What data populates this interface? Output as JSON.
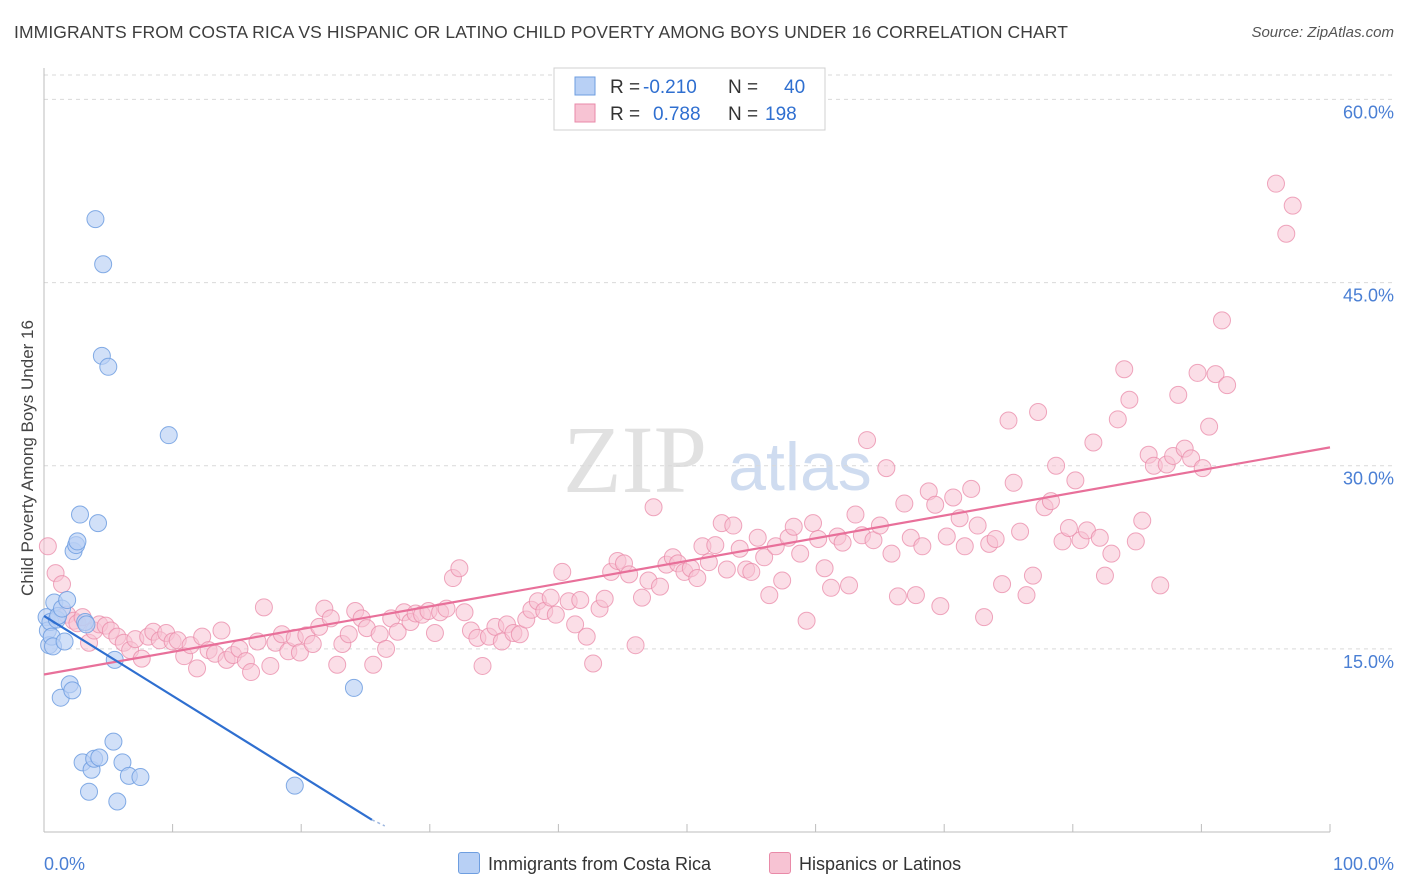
{
  "title": "IMMIGRANTS FROM COSTA RICA VS HISPANIC OR LATINO CHILD POVERTY AMONG BOYS UNDER 16 CORRELATION CHART",
  "source": "Source: ZipAtlas.com",
  "watermark": {
    "zip": "ZIP",
    "atlas": "atlas"
  },
  "colors": {
    "blue_fill": "#b8d0f5",
    "blue_stroke": "#6e9ee0",
    "blue_line": "#2f6fd0",
    "pink_fill": "#f7c3d3",
    "pink_stroke": "#e98aa8",
    "pink_line": "#e8709a",
    "grid": "#d9d9d9",
    "tick_label": "#4a7fd4"
  },
  "legend": {
    "rows": [
      {
        "r_label": "R =",
        "r_value": "-0.210",
        "n_label": "N =",
        "n_value": "40"
      },
      {
        "r_label": "R =",
        "r_value": "0.788",
        "n_label": "N =",
        "n_value": "198"
      }
    ]
  },
  "chart_data": {
    "type": "scatter",
    "title": "IMMIGRANTS FROM COSTA RICA VS HISPANIC OR LATINO CHILD POVERTY AMONG BOYS UNDER 16 CORRELATION CHART",
    "xlabel": "",
    "ylabel": "Child Poverty Among Boys Under 16",
    "xlim": [
      0,
      100
    ],
    "ylim": [
      0,
      62
    ],
    "x_tick_labels": [
      "0.0%",
      "100.0%"
    ],
    "y_ticks": [
      15,
      30,
      45,
      60
    ],
    "y_tick_labels": [
      "15.0%",
      "30.0%",
      "45.0%",
      "60.0%"
    ],
    "grid": true,
    "legend_position": "top-center",
    "series": [
      {
        "name": "Immigrants from Costa Rica",
        "color": "#b8d0f5",
        "trend": {
          "x": [
            0,
            25.5
          ],
          "y": [
            17.7,
            1.0
          ],
          "dashed_to": [
            26.5,
            0.5
          ]
        },
        "points": [
          [
            0.2,
            17.6
          ],
          [
            0.3,
            16.5
          ],
          [
            0.4,
            15.3
          ],
          [
            0.5,
            17.2
          ],
          [
            0.6,
            16.0
          ],
          [
            0.7,
            15.2
          ],
          [
            0.8,
            18.8
          ],
          [
            1.0,
            17.4
          ],
          [
            1.1,
            17.7
          ],
          [
            1.3,
            11.0
          ],
          [
            1.4,
            18.3
          ],
          [
            1.6,
            15.6
          ],
          [
            1.8,
            19.0
          ],
          [
            2.0,
            12.1
          ],
          [
            2.2,
            11.6
          ],
          [
            2.3,
            23.0
          ],
          [
            2.5,
            23.5
          ],
          [
            2.6,
            23.8
          ],
          [
            2.8,
            26.0
          ],
          [
            3.0,
            5.7
          ],
          [
            3.2,
            17.2
          ],
          [
            3.3,
            17.0
          ],
          [
            3.5,
            3.3
          ],
          [
            3.7,
            5.1
          ],
          [
            3.9,
            6.0
          ],
          [
            4.0,
            50.2
          ],
          [
            4.2,
            25.3
          ],
          [
            4.3,
            6.1
          ],
          [
            4.5,
            39.0
          ],
          [
            4.6,
            46.5
          ],
          [
            5.0,
            38.1
          ],
          [
            5.4,
            7.4
          ],
          [
            5.5,
            14.1
          ],
          [
            5.7,
            2.5
          ],
          [
            6.1,
            5.7
          ],
          [
            6.6,
            4.6
          ],
          [
            7.5,
            4.5
          ],
          [
            9.7,
            32.5
          ],
          [
            19.5,
            3.8
          ],
          [
            24.1,
            11.8
          ]
        ]
      },
      {
        "name": "Hispanics or Latinos",
        "color": "#f7c3d3",
        "trend": {
          "x": [
            0,
            100
          ],
          "y": [
            12.9,
            31.5
          ]
        },
        "points": [
          [
            0.3,
            23.4
          ],
          [
            0.9,
            21.2
          ],
          [
            1.4,
            20.3
          ],
          [
            1.8,
            17.8
          ],
          [
            2.3,
            17.3
          ],
          [
            2.6,
            17.1
          ],
          [
            3.0,
            17.6
          ],
          [
            3.5,
            15.5
          ],
          [
            3.9,
            16.5
          ],
          [
            4.3,
            17.0
          ],
          [
            4.8,
            16.9
          ],
          [
            5.2,
            16.5
          ],
          [
            5.7,
            16.0
          ],
          [
            6.2,
            15.5
          ],
          [
            6.7,
            14.9
          ],
          [
            7.1,
            15.8
          ],
          [
            7.6,
            14.2
          ],
          [
            8.1,
            16.0
          ],
          [
            8.5,
            16.4
          ],
          [
            9.0,
            15.7
          ],
          [
            9.5,
            16.3
          ],
          [
            10.0,
            15.6
          ],
          [
            10.4,
            15.7
          ],
          [
            10.9,
            14.4
          ],
          [
            11.4,
            15.3
          ],
          [
            11.9,
            13.4
          ],
          [
            12.3,
            16.0
          ],
          [
            12.8,
            14.9
          ],
          [
            13.3,
            14.6
          ],
          [
            13.8,
            16.5
          ],
          [
            14.2,
            14.1
          ],
          [
            14.7,
            14.5
          ],
          [
            15.2,
            15.0
          ],
          [
            15.7,
            14.0
          ],
          [
            16.1,
            13.1
          ],
          [
            16.6,
            15.6
          ],
          [
            17.1,
            18.4
          ],
          [
            17.6,
            13.6
          ],
          [
            18.0,
            15.5
          ],
          [
            18.5,
            16.2
          ],
          [
            19.0,
            14.8
          ],
          [
            19.5,
            15.9
          ],
          [
            19.9,
            14.7
          ],
          [
            20.4,
            16.1
          ],
          [
            20.9,
            15.4
          ],
          [
            21.4,
            16.8
          ],
          [
            21.8,
            18.3
          ],
          [
            22.3,
            17.5
          ],
          [
            22.8,
            13.7
          ],
          [
            23.2,
            15.4
          ],
          [
            23.7,
            16.2
          ],
          [
            24.2,
            18.1
          ],
          [
            24.7,
            17.5
          ],
          [
            25.1,
            16.7
          ],
          [
            25.6,
            13.7
          ],
          [
            26.1,
            16.2
          ],
          [
            26.6,
            15.0
          ],
          [
            27.0,
            17.5
          ],
          [
            27.5,
            16.4
          ],
          [
            28.0,
            18.0
          ],
          [
            28.5,
            17.2
          ],
          [
            28.9,
            17.9
          ],
          [
            29.4,
            17.8
          ],
          [
            29.9,
            18.1
          ],
          [
            30.4,
            16.3
          ],
          [
            30.8,
            18.0
          ],
          [
            31.3,
            18.3
          ],
          [
            31.8,
            20.8
          ],
          [
            32.3,
            21.6
          ],
          [
            32.7,
            18.0
          ],
          [
            33.2,
            16.5
          ],
          [
            33.7,
            15.9
          ],
          [
            34.1,
            13.6
          ],
          [
            34.6,
            16.0
          ],
          [
            35.1,
            16.8
          ],
          [
            35.6,
            15.6
          ],
          [
            36.0,
            17.0
          ],
          [
            36.5,
            16.3
          ],
          [
            37.0,
            16.2
          ],
          [
            37.5,
            17.4
          ],
          [
            37.9,
            18.2
          ],
          [
            38.4,
            18.9
          ],
          [
            38.9,
            18.1
          ],
          [
            39.4,
            19.2
          ],
          [
            39.8,
            17.8
          ],
          [
            40.3,
            21.3
          ],
          [
            40.8,
            18.9
          ],
          [
            41.3,
            17.0
          ],
          [
            41.7,
            19.0
          ],
          [
            42.2,
            16.0
          ],
          [
            42.7,
            13.8
          ],
          [
            43.2,
            18.3
          ],
          [
            43.6,
            19.1
          ],
          [
            44.1,
            21.3
          ],
          [
            44.6,
            22.2
          ],
          [
            45.1,
            22.0
          ],
          [
            45.5,
            21.1
          ],
          [
            46.0,
            15.3
          ],
          [
            46.5,
            19.2
          ],
          [
            47.0,
            20.6
          ],
          [
            47.4,
            26.6
          ],
          [
            47.9,
            20.1
          ],
          [
            48.4,
            21.9
          ],
          [
            48.9,
            22.5
          ],
          [
            49.3,
            22.0
          ],
          [
            49.8,
            21.3
          ],
          [
            50.3,
            21.6
          ],
          [
            50.8,
            20.8
          ],
          [
            51.2,
            23.4
          ],
          [
            51.7,
            22.1
          ],
          [
            52.2,
            23.5
          ],
          [
            52.7,
            25.3
          ],
          [
            53.1,
            21.5
          ],
          [
            53.6,
            25.1
          ],
          [
            54.1,
            23.2
          ],
          [
            54.6,
            21.5
          ],
          [
            55.0,
            21.3
          ],
          [
            55.5,
            24.1
          ],
          [
            56.0,
            22.5
          ],
          [
            56.4,
            19.4
          ],
          [
            56.9,
            23.4
          ],
          [
            57.4,
            20.6
          ],
          [
            57.9,
            24.1
          ],
          [
            58.3,
            25.0
          ],
          [
            58.8,
            22.8
          ],
          [
            59.3,
            17.3
          ],
          [
            59.8,
            25.3
          ],
          [
            60.2,
            24.0
          ],
          [
            60.7,
            21.6
          ],
          [
            61.2,
            20.0
          ],
          [
            61.7,
            24.2
          ],
          [
            62.1,
            23.7
          ],
          [
            62.6,
            20.2
          ],
          [
            63.1,
            26.0
          ],
          [
            63.6,
            24.3
          ],
          [
            64.0,
            32.1
          ],
          [
            64.5,
            23.9
          ],
          [
            65.0,
            25.1
          ],
          [
            65.5,
            29.8
          ],
          [
            65.9,
            22.8
          ],
          [
            66.4,
            19.3
          ],
          [
            66.9,
            26.9
          ],
          [
            67.4,
            24.1
          ],
          [
            67.8,
            19.4
          ],
          [
            68.3,
            23.4
          ],
          [
            68.8,
            27.9
          ],
          [
            69.3,
            26.8
          ],
          [
            69.7,
            18.5
          ],
          [
            70.2,
            24.2
          ],
          [
            70.7,
            27.4
          ],
          [
            71.2,
            25.7
          ],
          [
            71.6,
            23.4
          ],
          [
            72.1,
            28.1
          ],
          [
            72.6,
            25.1
          ],
          [
            73.1,
            17.6
          ],
          [
            73.5,
            23.6
          ],
          [
            74.0,
            24.0
          ],
          [
            74.5,
            20.3
          ],
          [
            75.0,
            33.7
          ],
          [
            75.4,
            28.6
          ],
          [
            75.9,
            24.6
          ],
          [
            76.4,
            19.4
          ],
          [
            76.9,
            21.0
          ],
          [
            77.3,
            34.4
          ],
          [
            77.8,
            26.6
          ],
          [
            78.3,
            27.1
          ],
          [
            78.7,
            30.0
          ],
          [
            79.2,
            23.8
          ],
          [
            79.7,
            24.9
          ],
          [
            80.2,
            28.8
          ],
          [
            80.6,
            23.9
          ],
          [
            81.1,
            24.7
          ],
          [
            81.6,
            31.9
          ],
          [
            82.1,
            24.1
          ],
          [
            82.5,
            21.0
          ],
          [
            83.0,
            22.8
          ],
          [
            83.5,
            33.8
          ],
          [
            84.0,
            37.9
          ],
          [
            84.4,
            35.4
          ],
          [
            84.9,
            23.8
          ],
          [
            85.4,
            25.5
          ],
          [
            85.9,
            30.9
          ],
          [
            86.3,
            30.0
          ],
          [
            86.8,
            20.2
          ],
          [
            87.3,
            30.1
          ],
          [
            87.8,
            30.8
          ],
          [
            88.2,
            35.8
          ],
          [
            88.7,
            31.4
          ],
          [
            89.2,
            30.6
          ],
          [
            89.7,
            37.6
          ],
          [
            90.1,
            29.8
          ],
          [
            90.6,
            33.2
          ],
          [
            91.1,
            37.5
          ],
          [
            91.6,
            41.9
          ],
          [
            92.0,
            36.6
          ],
          [
            95.8,
            53.1
          ],
          [
            96.6,
            49.0
          ],
          [
            97.1,
            51.3
          ]
        ]
      }
    ]
  },
  "bottom_legend": {
    "items": [
      {
        "label": "Immigrants from Costa Rica"
      },
      {
        "label": "Hispanics or Latinos"
      }
    ]
  }
}
